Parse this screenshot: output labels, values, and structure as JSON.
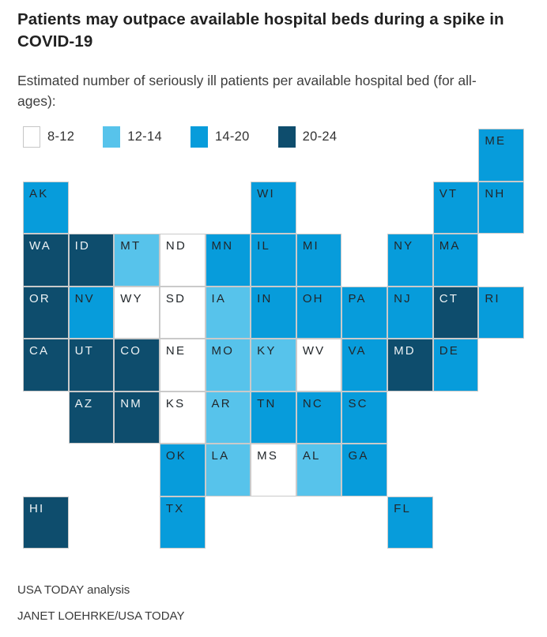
{
  "page": {
    "title": "Patients may outpace available hospital beds during a spike in COVID-19",
    "subtitle": "Estimated number of seriously ill patients per available hospital bed (for all-ages):",
    "source_line": "USA TODAY analysis",
    "credit_line": "JANET LOEHRKE/USA TODAY"
  },
  "colors": {
    "bins": {
      "8-12": "#ffffff",
      "12-14": "#57c3eb",
      "14-20": "#079cdb",
      "20-24": "#0e4d6d"
    },
    "tile_border": "#cacaca",
    "dark_label_text": "#22272b",
    "light_label_text": "#edf2f4"
  },
  "legend": {
    "items": [
      {
        "label": "8-12",
        "bin": "8-12"
      },
      {
        "label": "12-14",
        "bin": "12-14"
      },
      {
        "label": "14-20",
        "bin": "14-20"
      },
      {
        "label": "20-24",
        "bin": "20-24"
      }
    ]
  },
  "chart_data": {
    "type": "heatmap",
    "subtype": "us-state-tile-cartogram",
    "title": "Patients may outpace available hospital beds during a spike in COVID-19",
    "value_label": "Estimated number of seriously ill patients per available hospital bed (for all-ages)",
    "bins": [
      "8-12",
      "12-14",
      "14-20",
      "20-24"
    ],
    "legend_position": "top-left",
    "grid": {
      "columns": 11,
      "rows": 8
    },
    "states": [
      {
        "abbr": "ME",
        "row": 1,
        "col": 11,
        "bin": "14-20"
      },
      {
        "abbr": "AK",
        "row": 2,
        "col": 1,
        "bin": "14-20"
      },
      {
        "abbr": "WI",
        "row": 2,
        "col": 6,
        "bin": "14-20"
      },
      {
        "abbr": "VT",
        "row": 2,
        "col": 10,
        "bin": "14-20"
      },
      {
        "abbr": "NH",
        "row": 2,
        "col": 11,
        "bin": "14-20"
      },
      {
        "abbr": "WA",
        "row": 3,
        "col": 1,
        "bin": "20-24"
      },
      {
        "abbr": "ID",
        "row": 3,
        "col": 2,
        "bin": "20-24"
      },
      {
        "abbr": "MT",
        "row": 3,
        "col": 3,
        "bin": "12-14"
      },
      {
        "abbr": "ND",
        "row": 3,
        "col": 4,
        "bin": "8-12"
      },
      {
        "abbr": "MN",
        "row": 3,
        "col": 5,
        "bin": "14-20"
      },
      {
        "abbr": "IL",
        "row": 3,
        "col": 6,
        "bin": "14-20"
      },
      {
        "abbr": "MI",
        "row": 3,
        "col": 7,
        "bin": "14-20"
      },
      {
        "abbr": "NY",
        "row": 3,
        "col": 9,
        "bin": "14-20"
      },
      {
        "abbr": "MA",
        "row": 3,
        "col": 10,
        "bin": "14-20"
      },
      {
        "abbr": "OR",
        "row": 4,
        "col": 1,
        "bin": "20-24"
      },
      {
        "abbr": "NV",
        "row": 4,
        "col": 2,
        "bin": "14-20"
      },
      {
        "abbr": "WY",
        "row": 4,
        "col": 3,
        "bin": "8-12"
      },
      {
        "abbr": "SD",
        "row": 4,
        "col": 4,
        "bin": "8-12"
      },
      {
        "abbr": "IA",
        "row": 4,
        "col": 5,
        "bin": "12-14"
      },
      {
        "abbr": "IN",
        "row": 4,
        "col": 6,
        "bin": "14-20"
      },
      {
        "abbr": "OH",
        "row": 4,
        "col": 7,
        "bin": "14-20"
      },
      {
        "abbr": "PA",
        "row": 4,
        "col": 8,
        "bin": "14-20"
      },
      {
        "abbr": "NJ",
        "row": 4,
        "col": 9,
        "bin": "14-20"
      },
      {
        "abbr": "CT",
        "row": 4,
        "col": 10,
        "bin": "20-24"
      },
      {
        "abbr": "RI",
        "row": 4,
        "col": 11,
        "bin": "14-20"
      },
      {
        "abbr": "CA",
        "row": 5,
        "col": 1,
        "bin": "20-24"
      },
      {
        "abbr": "UT",
        "row": 5,
        "col": 2,
        "bin": "20-24"
      },
      {
        "abbr": "CO",
        "row": 5,
        "col": 3,
        "bin": "20-24"
      },
      {
        "abbr": "NE",
        "row": 5,
        "col": 4,
        "bin": "8-12"
      },
      {
        "abbr": "MO",
        "row": 5,
        "col": 5,
        "bin": "12-14"
      },
      {
        "abbr": "KY",
        "row": 5,
        "col": 6,
        "bin": "12-14"
      },
      {
        "abbr": "WV",
        "row": 5,
        "col": 7,
        "bin": "8-12"
      },
      {
        "abbr": "VA",
        "row": 5,
        "col": 8,
        "bin": "14-20"
      },
      {
        "abbr": "MD",
        "row": 5,
        "col": 9,
        "bin": "20-24"
      },
      {
        "abbr": "DE",
        "row": 5,
        "col": 10,
        "bin": "14-20"
      },
      {
        "abbr": "AZ",
        "row": 6,
        "col": 2,
        "bin": "20-24"
      },
      {
        "abbr": "NM",
        "row": 6,
        "col": 3,
        "bin": "20-24"
      },
      {
        "abbr": "KS",
        "row": 6,
        "col": 4,
        "bin": "8-12"
      },
      {
        "abbr": "AR",
        "row": 6,
        "col": 5,
        "bin": "12-14"
      },
      {
        "abbr": "TN",
        "row": 6,
        "col": 6,
        "bin": "14-20"
      },
      {
        "abbr": "NC",
        "row": 6,
        "col": 7,
        "bin": "14-20"
      },
      {
        "abbr": "SC",
        "row": 6,
        "col": 8,
        "bin": "14-20"
      },
      {
        "abbr": "OK",
        "row": 7,
        "col": 4,
        "bin": "14-20"
      },
      {
        "abbr": "LA",
        "row": 7,
        "col": 5,
        "bin": "12-14"
      },
      {
        "abbr": "MS",
        "row": 7,
        "col": 6,
        "bin": "8-12"
      },
      {
        "abbr": "AL",
        "row": 7,
        "col": 7,
        "bin": "12-14"
      },
      {
        "abbr": "GA",
        "row": 7,
        "col": 8,
        "bin": "14-20"
      },
      {
        "abbr": "HI",
        "row": 8,
        "col": 1,
        "bin": "20-24"
      },
      {
        "abbr": "TX",
        "row": 8,
        "col": 4,
        "bin": "14-20"
      },
      {
        "abbr": "FL",
        "row": 8,
        "col": 9,
        "bin": "14-20"
      }
    ]
  }
}
